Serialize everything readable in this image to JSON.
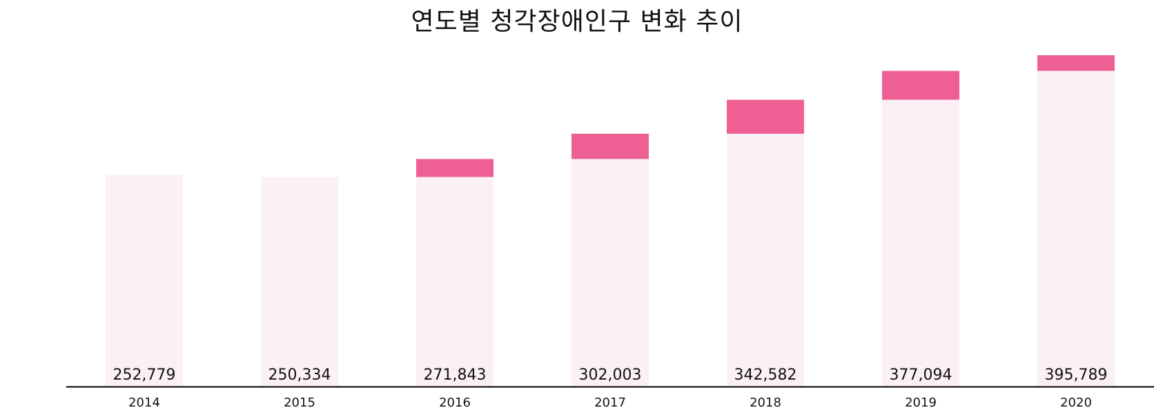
{
  "chart_data": {
    "type": "bar",
    "title": "연도별 청각장애인구 변화 추이",
    "categories": [
      "2014",
      "2015",
      "2016",
      "2017",
      "2018",
      "2019",
      "2020"
    ],
    "values": [
      252779,
      250334,
      271843,
      302003,
      342582,
      377094,
      395789
    ],
    "data_labels": [
      "252,779",
      "250,334",
      "271,843",
      "302,003",
      "342,582",
      "377,094",
      "395,789"
    ],
    "ylim": [
      0,
      395789
    ],
    "grid": false,
    "legend": "none"
  },
  "colors": {
    "bar_fill": "#fbf0f6",
    "increase_fill": "#ee6094",
    "axis": "#000000",
    "text": "#111111"
  }
}
